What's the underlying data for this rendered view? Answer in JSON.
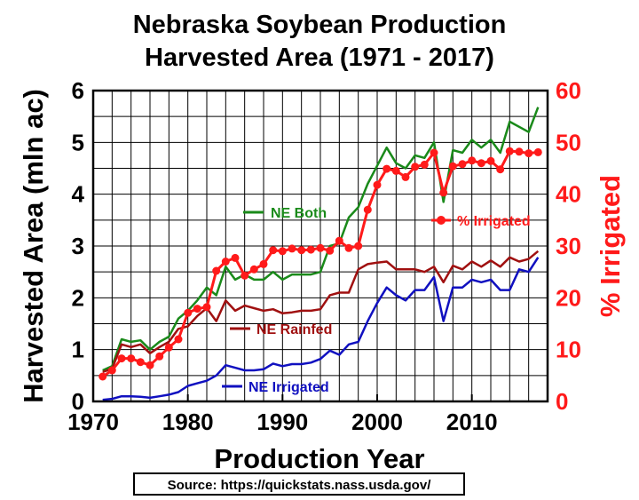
{
  "chart_data": {
    "type": "line",
    "title_line1": "Nebraska Soybean Production",
    "title_line2": "Harvested Area (1971 - 2017)",
    "xlabel": "Production Year",
    "ylabel": "Harvested Area (mln ac)",
    "y2label": "% Irrigated",
    "source": "Source: https://quickstats.nass.usda.gov/",
    "xlim": [
      1970,
      2018
    ],
    "ylim": [
      0,
      6
    ],
    "y2lim": [
      0,
      60
    ],
    "xticks": [
      1970,
      1980,
      1990,
      2000,
      2010
    ],
    "yticks": [
      0,
      1,
      2,
      3,
      4,
      5,
      6
    ],
    "y2ticks": [
      0,
      10,
      20,
      30,
      40,
      50,
      60
    ],
    "grid": true,
    "x": [
      1971,
      1972,
      1973,
      1974,
      1975,
      1976,
      1977,
      1978,
      1979,
      1980,
      1981,
      1982,
      1983,
      1984,
      1985,
      1986,
      1987,
      1988,
      1989,
      1990,
      1991,
      1992,
      1993,
      1994,
      1995,
      1996,
      1997,
      1998,
      1999,
      2000,
      2001,
      2002,
      2003,
      2004,
      2005,
      2006,
      2007,
      2008,
      2009,
      2010,
      2011,
      2012,
      2013,
      2014,
      2015,
      2016,
      2017
    ],
    "series": [
      {
        "name": "NE Both",
        "axis": "left",
        "color": "#1a8a1a",
        "values": [
          0.6,
          0.68,
          1.2,
          1.15,
          1.18,
          1.0,
          1.15,
          1.25,
          1.6,
          1.75,
          1.95,
          2.2,
          2.05,
          2.6,
          2.35,
          2.45,
          2.35,
          2.35,
          2.5,
          2.35,
          2.45,
          2.45,
          2.45,
          2.5,
          3.0,
          3.05,
          3.55,
          3.75,
          4.2,
          4.55,
          4.9,
          4.6,
          4.5,
          4.75,
          4.7,
          5.0,
          3.85,
          4.85,
          4.8,
          5.05,
          4.9,
          5.05,
          4.8,
          5.4,
          5.3,
          5.2,
          5.68
        ]
      },
      {
        "name": "NE Rainfed",
        "axis": "left",
        "color": "#a01010",
        "values": [
          0.57,
          0.63,
          1.1,
          1.05,
          1.1,
          0.93,
          1.05,
          1.15,
          1.4,
          1.45,
          1.65,
          1.8,
          1.55,
          1.95,
          1.75,
          1.85,
          1.8,
          1.75,
          1.78,
          1.7,
          1.72,
          1.75,
          1.75,
          1.78,
          2.05,
          2.1,
          2.1,
          2.55,
          2.65,
          2.68,
          2.7,
          2.55,
          2.55,
          2.55,
          2.5,
          2.6,
          2.3,
          2.62,
          2.55,
          2.7,
          2.6,
          2.72,
          2.6,
          2.78,
          2.7,
          2.75,
          2.9
        ]
      },
      {
        "name": "NE Irrigated",
        "axis": "left",
        "color": "#1010c0",
        "values": [
          0.03,
          0.05,
          0.1,
          0.1,
          0.09,
          0.07,
          0.1,
          0.13,
          0.18,
          0.3,
          0.35,
          0.4,
          0.5,
          0.7,
          0.65,
          0.6,
          0.6,
          0.62,
          0.73,
          0.68,
          0.72,
          0.72,
          0.75,
          0.82,
          0.98,
          0.9,
          1.1,
          1.15,
          1.55,
          1.9,
          2.2,
          2.05,
          1.95,
          2.15,
          2.15,
          2.4,
          1.55,
          2.2,
          2.2,
          2.35,
          2.3,
          2.35,
          2.15,
          2.15,
          2.55,
          2.5,
          2.78
        ]
      },
      {
        "name": "% Irrigated",
        "axis": "right",
        "color": "#ff1a1a",
        "markers": true,
        "values": [
          4.8,
          6.0,
          8.3,
          8.3,
          7.6,
          7.0,
          8.7,
          10.4,
          12.0,
          17.1,
          17.9,
          18.2,
          25.2,
          27.0,
          27.7,
          24.3,
          25.5,
          26.5,
          29.2,
          29.0,
          29.5,
          29.2,
          29.3,
          29.6,
          29.1,
          31.0,
          29.6,
          30.0,
          37.0,
          41.8,
          44.9,
          44.5,
          43.3,
          45.3,
          45.7,
          48.0,
          40.3,
          45.4,
          45.8,
          46.5,
          46.0,
          46.4,
          44.8,
          48.3,
          48.2,
          47.9,
          48.1
        ]
      }
    ]
  }
}
